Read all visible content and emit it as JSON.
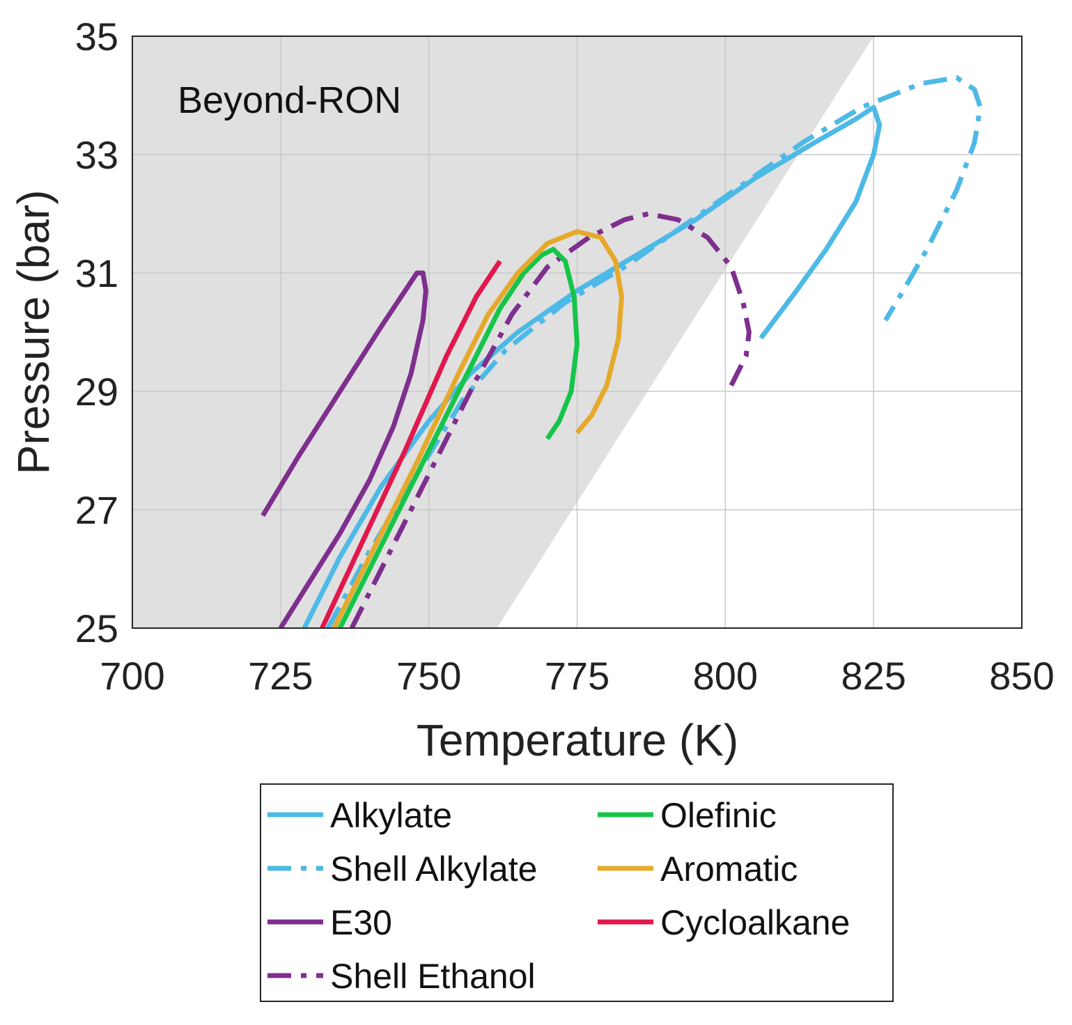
{
  "chart_data": {
    "type": "line",
    "title": "",
    "xlabel": "Temperature (K)",
    "ylabel": "Pressure (bar)",
    "xlim": [
      700,
      850
    ],
    "ylim": [
      25,
      35
    ],
    "xticks": [
      700,
      725,
      750,
      775,
      800,
      825,
      850
    ],
    "yticks": [
      25,
      27,
      29,
      31,
      33,
      35
    ],
    "grid": true,
    "legend_position": "bottom-outside",
    "region": {
      "label": "Beyond-RON",
      "color": "#e0e0e0",
      "boundary": [
        [
          761.5,
          25
        ],
        [
          825,
          35
        ]
      ]
    },
    "series": [
      {
        "name": "Alkylate",
        "color": "#4db9e6",
        "dash": "solid",
        "points": [
          [
            729,
            25
          ],
          [
            735,
            26.2
          ],
          [
            742,
            27.4
          ],
          [
            750,
            28.5
          ],
          [
            757,
            29.3
          ],
          [
            765,
            30
          ],
          [
            775,
            30.7
          ],
          [
            785,
            31.3
          ],
          [
            795,
            31.9
          ],
          [
            805,
            32.6
          ],
          [
            815,
            33.2
          ],
          [
            822,
            33.6
          ],
          [
            825,
            33.8
          ],
          [
            826,
            33.5
          ],
          [
            825,
            33
          ],
          [
            822,
            32.2
          ],
          [
            817,
            31.4
          ],
          [
            812,
            30.7
          ],
          [
            806,
            29.9
          ]
        ]
      },
      {
        "name": "Shell Alkylate",
        "color": "#4db9e6",
        "dash": "dashdot",
        "points": [
          [
            733,
            25
          ],
          [
            740,
            26.3
          ],
          [
            748,
            27.6
          ],
          [
            756,
            28.9
          ],
          [
            763,
            29.7
          ],
          [
            773,
            30.5
          ],
          [
            783,
            31.1
          ],
          [
            793,
            31.8
          ],
          [
            803,
            32.5
          ],
          [
            813,
            33.2
          ],
          [
            823,
            33.8
          ],
          [
            833,
            34.2
          ],
          [
            839,
            34.3
          ],
          [
            842,
            34.1
          ],
          [
            843,
            33.8
          ],
          [
            842,
            33.2
          ],
          [
            839,
            32.4
          ],
          [
            834,
            31.4
          ],
          [
            830,
            30.7
          ],
          [
            827,
            30.2
          ]
        ]
      },
      {
        "name": "E30",
        "color": "#7e2f8e",
        "dash": "solid",
        "points": [
          [
            722,
            26.9
          ],
          [
            728,
            27.9
          ],
          [
            735,
            29
          ],
          [
            742,
            30.1
          ],
          [
            746,
            30.7
          ],
          [
            748,
            31
          ],
          [
            749,
            31
          ],
          [
            749.5,
            30.7
          ],
          [
            749,
            30.2
          ],
          [
            747,
            29.3
          ],
          [
            744,
            28.4
          ],
          [
            740,
            27.5
          ],
          [
            735,
            26.6
          ],
          [
            730,
            25.8
          ],
          [
            725,
            25
          ]
        ]
      },
      {
        "name": "Shell Ethanol",
        "color": "#7e2f8e",
        "dash": "dashdot",
        "points": [
          [
            737,
            25
          ],
          [
            744,
            26.4
          ],
          [
            751,
            27.8
          ],
          [
            758,
            29.2
          ],
          [
            764,
            30.3
          ],
          [
            770,
            31.1
          ],
          [
            777,
            31.6
          ],
          [
            783,
            31.9
          ],
          [
            787,
            32
          ],
          [
            792,
            31.9
          ],
          [
            797,
            31.6
          ],
          [
            801,
            31.1
          ],
          [
            803,
            30.5
          ],
          [
            804,
            30
          ],
          [
            803.5,
            29.6
          ],
          [
            801,
            29.1
          ]
        ]
      },
      {
        "name": "Olefinic",
        "color": "#16c44a",
        "dash": "solid",
        "points": [
          [
            735,
            25
          ],
          [
            742,
            26.4
          ],
          [
            749,
            27.8
          ],
          [
            756,
            29.2
          ],
          [
            762,
            30.4
          ],
          [
            766,
            31
          ],
          [
            769,
            31.3
          ],
          [
            771,
            31.4
          ],
          [
            773,
            31.2
          ],
          [
            774.5,
            30.6
          ],
          [
            775,
            29.8
          ],
          [
            774,
            29
          ],
          [
            772,
            28.5
          ],
          [
            770,
            28.2
          ]
        ]
      },
      {
        "name": "Aromatic",
        "color": "#e5a92b",
        "dash": "solid",
        "points": [
          [
            734,
            25
          ],
          [
            741,
            26.4
          ],
          [
            748,
            27.8
          ],
          [
            755,
            29.3
          ],
          [
            760,
            30.3
          ],
          [
            765,
            31
          ],
          [
            770,
            31.5
          ],
          [
            775,
            31.7
          ],
          [
            779,
            31.6
          ],
          [
            781.5,
            31.2
          ],
          [
            782.5,
            30.6
          ],
          [
            782,
            29.9
          ],
          [
            780,
            29.1
          ],
          [
            777.5,
            28.6
          ],
          [
            775,
            28.3
          ]
        ]
      },
      {
        "name": "Cycloalkane",
        "color": "#e1184d",
        "dash": "solid",
        "points": [
          [
            732,
            25
          ],
          [
            739,
            26.5
          ],
          [
            746,
            28
          ],
          [
            753,
            29.6
          ],
          [
            758,
            30.6
          ],
          [
            762,
            31.2
          ]
        ]
      }
    ]
  }
}
